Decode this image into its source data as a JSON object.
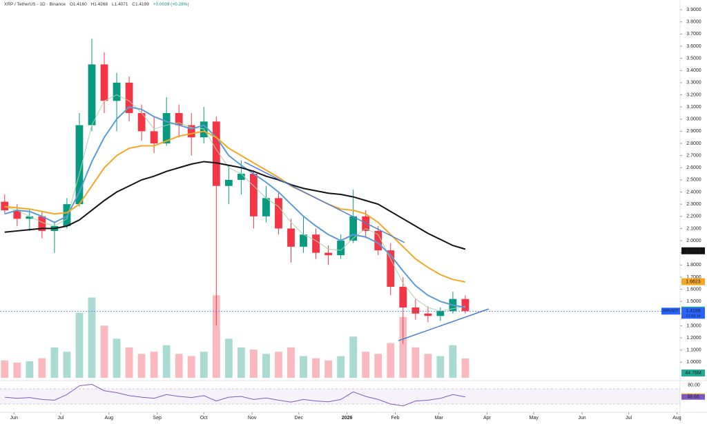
{
  "chart_data": {
    "type": "candlestick",
    "header": {
      "symbol": "XRP / TetherUS · 1D · Binance",
      "open": "O1.4160",
      "high": "H1.4268",
      "low": "L1.4071",
      "close": "C1.4199",
      "change": "+0.0039 (+0.28%)"
    },
    "up_color": "#089981",
    "down_color": "#f23645",
    "x": [
      -6,
      2,
      10,
      18,
      26,
      34,
      42,
      50,
      58,
      66,
      74,
      82,
      90,
      98,
      106,
      114,
      122,
      130,
      138,
      146,
      154,
      162,
      170,
      178,
      186,
      194,
      202,
      210,
      218,
      226,
      234,
      242,
      250,
      258,
      266,
      274,
      282,
      290
    ],
    "open": [
      2.32,
      2.25,
      2.18,
      2.2,
      2.08,
      2.12,
      2.3,
      2.95,
      3.45,
      3.15,
      3.3,
      3.05,
      2.9,
      2.8,
      3.05,
      2.95,
      2.85,
      2.98,
      2.45,
      2.5,
      2.55,
      2.2,
      2.35,
      2.1,
      1.95,
      2.05,
      1.9,
      1.88,
      2.0,
      2.2,
      2.08,
      1.92,
      1.62,
      1.45,
      1.4,
      1.38,
      1.42,
      1.52
    ],
    "high": [
      2.38,
      2.3,
      2.26,
      2.24,
      2.15,
      2.35,
      3.05,
      3.66,
      3.55,
      3.38,
      3.35,
      3.12,
      3.02,
      3.18,
      3.12,
      3.05,
      3.1,
      3.02,
      2.62,
      2.66,
      2.58,
      2.45,
      2.4,
      2.18,
      2.2,
      2.1,
      1.96,
      2.05,
      2.42,
      2.25,
      2.12,
      1.98,
      1.7,
      1.52,
      1.46,
      1.45,
      1.58,
      1.55
    ],
    "low": [
      2.22,
      2.12,
      2.08,
      2.02,
      1.9,
      2.1,
      2.28,
      2.9,
      3.05,
      2.9,
      2.98,
      2.82,
      2.72,
      2.78,
      2.85,
      2.7,
      2.8,
      1.3,
      2.3,
      2.38,
      2.1,
      2.15,
      2.05,
      1.82,
      1.9,
      1.85,
      1.8,
      1.85,
      1.98,
      2.02,
      1.88,
      1.55,
      1.15,
      1.35,
      1.33,
      1.34,
      1.4,
      1.4
    ],
    "close": [
      2.25,
      2.18,
      2.2,
      2.08,
      2.12,
      2.3,
      2.95,
      3.45,
      3.15,
      3.3,
      3.05,
      2.9,
      2.8,
      3.05,
      2.95,
      2.85,
      2.98,
      2.45,
      2.5,
      2.55,
      2.2,
      2.35,
      2.1,
      1.95,
      2.05,
      1.9,
      1.88,
      2.0,
      2.2,
      2.08,
      1.92,
      1.62,
      1.45,
      1.4,
      1.38,
      1.42,
      1.52,
      1.42
    ],
    "volume": [
      40,
      35,
      38,
      45,
      70,
      60,
      150,
      185,
      120,
      90,
      70,
      55,
      60,
      75,
      55,
      50,
      60,
      190,
      90,
      70,
      65,
      55,
      60,
      70,
      50,
      45,
      40,
      50,
      95,
      60,
      55,
      80,
      140,
      70,
      55,
      50,
      75,
      44.76
    ],
    "vlim": [
      0,
      200
    ],
    "volume_label": {
      "value": 44.76,
      "label": "44.76M",
      "color": "#22ab94"
    },
    "moving_averages": [
      {
        "color": "#a5d6a7",
        "values": [
          2.28,
          2.25,
          2.2,
          2.15,
          2.12,
          2.18,
          2.55,
          2.95,
          3.15,
          3.2,
          3.15,
          3.05,
          2.92,
          2.95,
          2.97,
          2.93,
          2.92,
          2.75,
          2.6,
          2.55,
          2.45,
          2.35,
          2.28,
          2.15,
          2.05,
          2.0,
          1.93,
          1.92,
          2.02,
          2.1,
          2.05,
          1.85,
          1.65,
          1.52,
          1.45,
          1.42,
          1.44,
          1.46
        ]
      },
      {
        "color": "#5b9bd5",
        "values": [
          2.22,
          2.25,
          2.24,
          2.2,
          2.15,
          2.2,
          2.4,
          2.65,
          2.85,
          3.0,
          3.1,
          3.08,
          3.02,
          2.98,
          2.95,
          2.92,
          2.95,
          2.85,
          2.7,
          2.62,
          2.55,
          2.48,
          2.4,
          2.3,
          2.2,
          2.12,
          2.05,
          2.0,
          2.05,
          2.03,
          1.98,
          1.88,
          1.75,
          1.63,
          1.55,
          1.5,
          1.47,
          1.45
        ]
      },
      {
        "color": "#f5a623",
        "values": [
          2.28,
          2.27,
          2.26,
          2.24,
          2.22,
          2.23,
          2.3,
          2.45,
          2.6,
          2.7,
          2.76,
          2.78,
          2.78,
          2.82,
          2.86,
          2.88,
          2.9,
          2.85,
          2.76,
          2.7,
          2.64,
          2.58,
          2.52,
          2.45,
          2.4,
          2.35,
          2.3,
          2.26,
          2.25,
          2.22,
          2.15,
          2.05,
          1.95,
          1.85,
          1.78,
          1.72,
          1.68,
          1.66
        ]
      },
      {
        "color": "#111111",
        "values": [
          2.07,
          2.08,
          2.09,
          2.1,
          2.1,
          2.12,
          2.17,
          2.25,
          2.33,
          2.4,
          2.45,
          2.5,
          2.53,
          2.57,
          2.6,
          2.63,
          2.65,
          2.64,
          2.62,
          2.6,
          2.57,
          2.53,
          2.5,
          2.46,
          2.43,
          2.41,
          2.39,
          2.38,
          2.36,
          2.33,
          2.3,
          2.24,
          2.18,
          2.12,
          2.06,
          2.01,
          1.96,
          1.93
        ]
      }
    ],
    "trendlines": [
      {
        "color": "#4a7fd6",
        "x": [
          148,
          251
        ],
        "y": [
          2.647,
          1.984
        ]
      },
      {
        "color": "#4a7fd6",
        "x": [
          247,
          305
        ],
        "y": [
          1.177,
          1.438
        ]
      }
    ],
    "xlim": [
      -9,
      428
    ],
    "xticks": [
      {
        "value": 0,
        "label": "Jun"
      },
      {
        "value": 30,
        "label": "Jul"
      },
      {
        "value": 61,
        "label": "Aug"
      },
      {
        "value": 92,
        "label": "Sep"
      },
      {
        "value": 122,
        "label": "Oct"
      },
      {
        "value": 153,
        "label": "Nov"
      },
      {
        "value": 183,
        "label": "Dec"
      },
      {
        "value": 214,
        "label": "2026"
      },
      {
        "value": 245,
        "label": "Feb"
      },
      {
        "value": 273,
        "label": "Mar"
      },
      {
        "value": 304,
        "label": "Apr"
      },
      {
        "value": 334,
        "label": "May"
      },
      {
        "value": 365,
        "label": "Jun"
      },
      {
        "value": 395,
        "label": "Jul"
      },
      {
        "value": 426,
        "label": "Aug"
      }
    ],
    "ylim": [
      0.86,
      3.98
    ],
    "yticks": [
      {
        "value": 1.0,
        "label": "1.0000"
      },
      {
        "value": 1.1,
        "label": "1.1000"
      },
      {
        "value": 1.2,
        "label": "1.2000"
      },
      {
        "value": 1.3,
        "label": "1.3000"
      },
      {
        "value": 1.4,
        "label": "1.4000"
      },
      {
        "value": 1.5,
        "label": "1.5000"
      },
      {
        "value": 1.6,
        "label": "1.6000"
      },
      {
        "value": 1.7,
        "label": "1.7000"
      },
      {
        "value": 1.8,
        "label": "1.8000"
      },
      {
        "value": 1.9,
        "label": "1.9000"
      },
      {
        "value": 2.0,
        "label": "2.0000"
      },
      {
        "value": 2.1,
        "label": "2.1000"
      },
      {
        "value": 2.2,
        "label": "2.2000"
      },
      {
        "value": 2.3,
        "label": "2.3000"
      },
      {
        "value": 2.4,
        "label": "2.4000"
      },
      {
        "value": 2.5,
        "label": "2.5000"
      },
      {
        "value": 2.6,
        "label": "2.6000"
      },
      {
        "value": 2.7,
        "label": "2.7000"
      },
      {
        "value": 2.8,
        "label": "2.8000"
      },
      {
        "value": 2.9,
        "label": "2.9000"
      },
      {
        "value": 3.0,
        "label": "3.0000"
      },
      {
        "value": 3.1,
        "label": "3.1000"
      },
      {
        "value": 3.2,
        "label": "3.2000"
      },
      {
        "value": 3.3,
        "label": "3.3000"
      },
      {
        "value": 3.4,
        "label": "3.4000"
      },
      {
        "value": 3.5,
        "label": "3.5000"
      },
      {
        "value": 3.6,
        "label": "3.6000"
      },
      {
        "value": 3.7,
        "label": "3.7000"
      },
      {
        "value": 3.8,
        "label": "3.8000"
      },
      {
        "value": 3.9,
        "label": "3.9000"
      }
    ],
    "price_labels": [
      {
        "value": 1.9164,
        "label": "1.9164",
        "color": "#111111"
      },
      {
        "value": 1.6623,
        "label": "1.6623",
        "color": "#f5a623"
      },
      {
        "value": 1.4286,
        "label": "1.4286",
        "color": "#22ab94"
      },
      {
        "value": 1.4115,
        "label": "1.4115",
        "color": "#5b9bd5"
      }
    ],
    "current_price": {
      "symbol": "XRPUSDT",
      "value": 1.4199,
      "label": "1.4199",
      "countdown": "13:33:14",
      "color": "#2962ff"
    },
    "rsi": {
      "color": "#7e57c2",
      "ylim": [
        10,
        90
      ],
      "band": [
        30,
        70
      ],
      "values": [
        48,
        45,
        47,
        42,
        40,
        55,
        78,
        82,
        65,
        60,
        52,
        48,
        45,
        55,
        50,
        47,
        52,
        38,
        48,
        50,
        42,
        46,
        40,
        35,
        42,
        38,
        36,
        42,
        62,
        50,
        42,
        30,
        25,
        38,
        40,
        45,
        55,
        48.68
      ],
      "yticks": [
        {
          "value": 80,
          "label": "80.00"
        }
      ],
      "labels": [
        {
          "value": 50.91,
          "label": "50.91",
          "color": "#f5c542"
        },
        {
          "value": 48.68,
          "label": "48.68",
          "color": "#7e57c2"
        }
      ]
    }
  }
}
